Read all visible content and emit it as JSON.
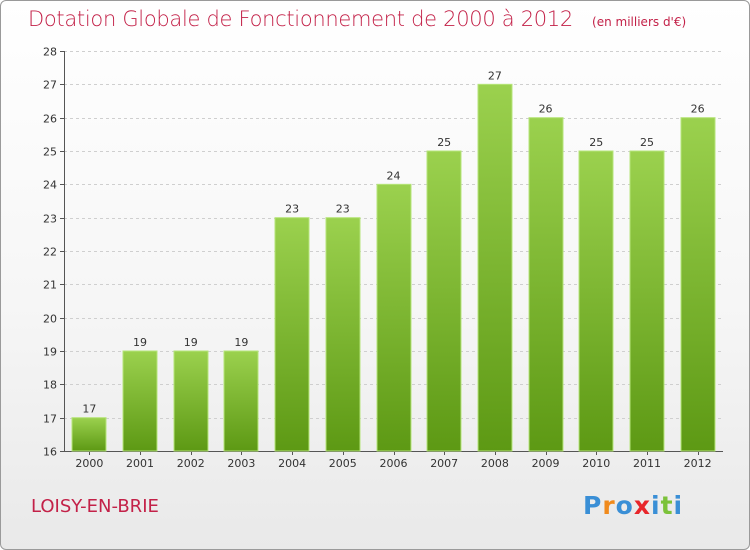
{
  "title": "Dotation Globale de Fonctionnement de 2000 à 2012",
  "unit": "(en milliers d'€)",
  "commune": "LOISY-EN-BRIE",
  "logo": {
    "text": "Proxiti",
    "colors": [
      "#3a8fd6",
      "#f08a1c",
      "#3a8fd6",
      "#e8262b",
      "#3a8fd6",
      "#7cc23a",
      "#3a8fd6"
    ]
  },
  "colors": {
    "title": "#c32148",
    "bar_top": "#9bd14e",
    "bar_bottom": "#5d9914",
    "bar_edge": "#b6e57a"
  },
  "chart_data": {
    "type": "bar",
    "categories": [
      "2000",
      "2001",
      "2002",
      "2003",
      "2004",
      "2005",
      "2006",
      "2007",
      "2008",
      "2009",
      "2010",
      "2011",
      "2012"
    ],
    "values": [
      17,
      19,
      19,
      19,
      23,
      23,
      24,
      25,
      27,
      26,
      25,
      25,
      26
    ],
    "ylim": [
      16,
      28
    ],
    "yticks": [
      16,
      17,
      18,
      19,
      20,
      21,
      22,
      23,
      24,
      25,
      26,
      27,
      28
    ],
    "grid": true,
    "title": "Dotation Globale de Fonctionnement de 2000 à 2012",
    "xlabel": "",
    "ylabel": ""
  }
}
